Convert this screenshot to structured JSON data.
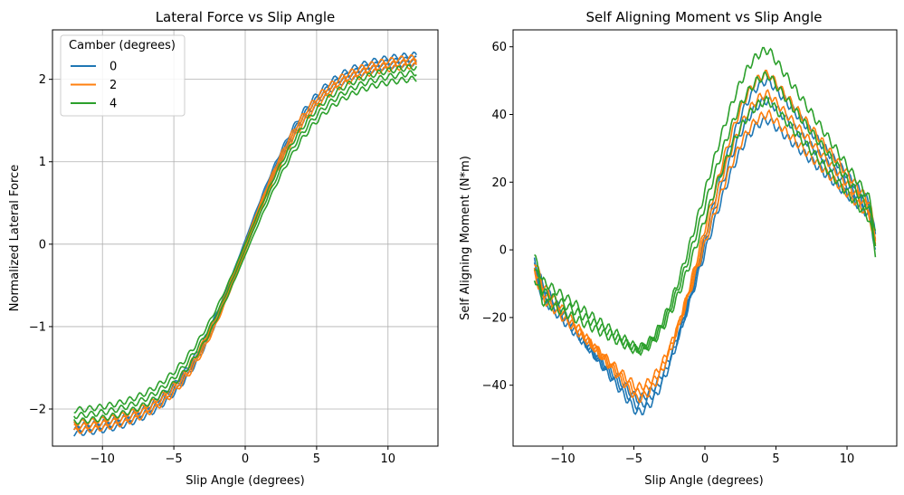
{
  "chart_data": [
    {
      "type": "line",
      "title": "Lateral Force vs Slip Angle",
      "xlabel": "Slip Angle (degrees)",
      "ylabel": "Normalized Lateral Force",
      "xlim": [
        -13.5,
        13.5
      ],
      "ylim": [
        -2.45,
        2.6
      ],
      "xticks": [
        -10,
        -5,
        0,
        5,
        10
      ],
      "xtick_labels": [
        "−10",
        "−5",
        "0",
        "5",
        "10"
      ],
      "yticks": [
        -2,
        -1,
        0,
        1,
        2
      ],
      "ytick_labels": [
        "−2",
        "−1",
        "0",
        "1",
        "2"
      ],
      "grid": true,
      "legend": {
        "title": "Camber (degrees)",
        "placement": "top-left"
      },
      "series": [
        {
          "name": "0",
          "color": "#1f77b4",
          "amplitude": 2.28,
          "stiffness": 0.205,
          "offset": 0.0,
          "spread": 0.05
        },
        {
          "name": "2",
          "color": "#ff7f0e",
          "amplitude": 2.25,
          "stiffness": 0.205,
          "offset": 0.08,
          "spread": 0.05
        },
        {
          "name": "4",
          "color": "#2ca02c",
          "amplitude": 2.12,
          "stiffness": 0.195,
          "offset": 0.15,
          "spread": 0.07
        }
      ]
    },
    {
      "type": "line",
      "title": "Self Aligning Moment vs Slip Angle",
      "xlabel": "Slip Angle (degrees)",
      "ylabel": "Self Aligning Moment (N*m)",
      "xlim": [
        -13.5,
        13.5
      ],
      "ylim": [
        -58,
        65
      ],
      "xticks": [
        -10,
        -5,
        0,
        5,
        10
      ],
      "xtick_labels": [
        "−10",
        "−5",
        "0",
        "5",
        "10"
      ],
      "yticks": [
        -40,
        -20,
        0,
        20,
        40,
        60
      ],
      "ytick_labels": [
        "−40",
        "−20",
        "0",
        "20",
        "40",
        "60"
      ],
      "grid": false,
      "series": [
        {
          "name": "0",
          "color": "#1f77b4",
          "peak": 48,
          "trough": -50,
          "spread": 4
        },
        {
          "name": "2",
          "color": "#ff7f0e",
          "peak": 50,
          "trough": -46,
          "spread": 4
        },
        {
          "name": "4",
          "color": "#2ca02c",
          "peak": 56,
          "trough": -32,
          "spread": 6
        }
      ]
    }
  ]
}
